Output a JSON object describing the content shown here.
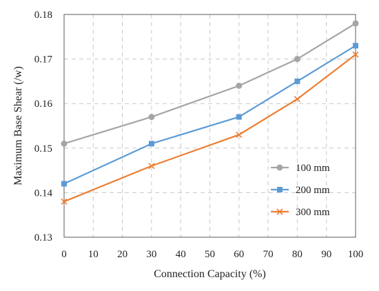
{
  "chart_data": {
    "type": "line",
    "xlabel": "Connection Capacity (%)",
    "ylabel": "Maximum Base Shear (/w)",
    "xlim": [
      0,
      100
    ],
    "ylim": [
      0.13,
      0.18
    ],
    "x_ticks": [
      0,
      10,
      20,
      30,
      40,
      50,
      60,
      70,
      80,
      90,
      100
    ],
    "y_ticks": [
      0.13,
      0.14,
      0.15,
      0.16,
      0.17,
      0.18
    ],
    "x_tick_labels": [
      "0",
      "10",
      "20",
      "30",
      "40",
      "50",
      "60",
      "70",
      "80",
      "90",
      "100"
    ],
    "y_tick_labels": [
      "0.13",
      "0.14",
      "0.15",
      "0.16",
      "0.17",
      "0.18"
    ],
    "grid": true,
    "legend_position": "bottom-right",
    "x": [
      0,
      30,
      60,
      80,
      100
    ],
    "series": [
      {
        "name": "100 mm",
        "values": [
          0.151,
          0.157,
          0.164,
          0.17,
          0.178
        ],
        "color": "#a5a5a5",
        "marker": "circle"
      },
      {
        "name": "200 mm",
        "values": [
          0.142,
          0.151,
          0.157,
          0.165,
          0.173
        ],
        "color": "#5b9bd5",
        "marker": "square"
      },
      {
        "name": "300 mm",
        "values": [
          0.138,
          0.146,
          0.153,
          0.161,
          0.171
        ],
        "color": "#ed7d31",
        "marker": "x"
      }
    ]
  }
}
